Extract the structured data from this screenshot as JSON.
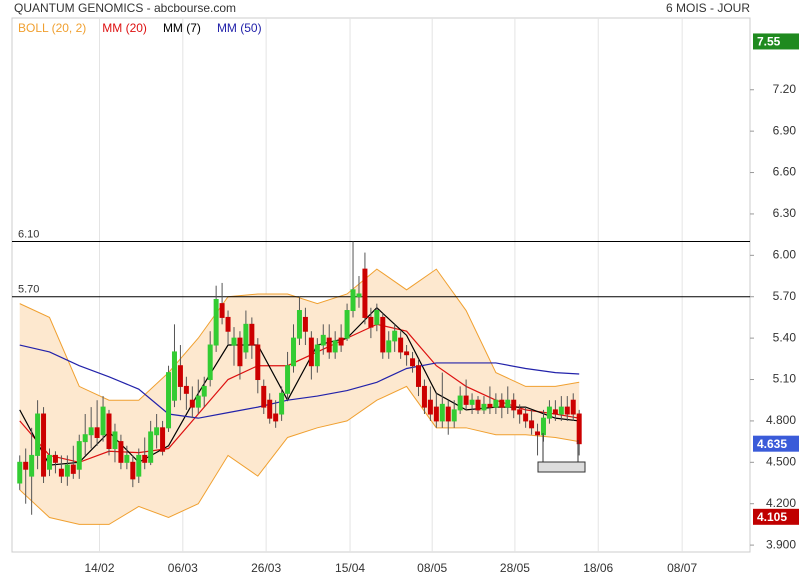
{
  "chart_data": {
    "type": "candlestick",
    "title": "QUANTUM GENOMICS - abcbourse.com",
    "subtitle": "6 MOIS - JOUR",
    "xlim": [
      -1.3,
      122.7
    ],
    "ylim": [
      3.85,
      7.72
    ],
    "xticks": [
      {
        "value": 13.4,
        "label": "14/02"
      },
      {
        "value": 27.4,
        "label": "06/03"
      },
      {
        "value": 41.4,
        "label": "26/03"
      },
      {
        "value": 55.5,
        "label": "15/04"
      },
      {
        "value": 69.3,
        "label": "08/05"
      },
      {
        "value": 83.2,
        "label": "28/05"
      },
      {
        "value": 97.2,
        "label": "18/06"
      },
      {
        "value": 111.3,
        "label": "08/07"
      }
    ],
    "yticks": [
      {
        "value": 3.9,
        "label": "3.900"
      },
      {
        "value": 4.2,
        "label": "4.200"
      },
      {
        "value": 4.5,
        "label": "4.500"
      },
      {
        "value": 4.8,
        "label": "4.800"
      },
      {
        "value": 5.1,
        "label": "5.10"
      },
      {
        "value": 5.4,
        "label": "5.40"
      },
      {
        "value": 5.7,
        "label": "5.70"
      },
      {
        "value": 6.0,
        "label": "6.00"
      },
      {
        "value": 6.3,
        "label": "6.30"
      },
      {
        "value": 6.6,
        "label": "6.60"
      },
      {
        "value": 6.9,
        "label": "6.90"
      },
      {
        "value": 7.2,
        "label": "7.20"
      }
    ],
    "grid": true,
    "up_color": "#33cc33",
    "down_color": "#cc0000",
    "x": [
      0,
      1,
      2,
      3,
      4,
      5,
      6,
      7,
      8,
      9,
      10,
      11,
      12,
      13,
      14,
      15,
      16,
      17,
      18,
      19,
      20,
      21,
      22,
      23,
      24,
      25,
      26,
      27,
      28,
      29,
      30,
      31,
      32,
      33,
      34,
      35,
      36,
      37,
      38,
      39,
      40,
      41,
      42,
      43,
      44,
      45,
      46,
      47,
      48,
      49,
      50,
      51,
      52,
      53,
      54,
      55,
      56,
      57,
      58,
      59,
      60,
      61,
      62,
      63,
      64,
      65,
      66,
      67,
      68,
      69,
      70,
      71,
      72,
      73,
      74,
      75,
      76,
      77,
      78,
      79,
      80,
      81,
      82,
      83,
      84,
      85,
      86,
      87,
      88,
      89,
      90,
      91,
      92,
      93,
      94
    ],
    "open": [
      4.35,
      4.5,
      4.4,
      4.55,
      4.85,
      4.45,
      4.55,
      4.45,
      4.4,
      4.48,
      4.45,
      4.65,
      4.7,
      4.75,
      4.7,
      4.85,
      4.6,
      4.65,
      4.5,
      4.5,
      4.4,
      4.55,
      4.5,
      4.7,
      4.75,
      4.75,
      4.95,
      5.2,
      5.05,
      4.95,
      4.9,
      4.98,
      5.1,
      5.35,
      5.65,
      5.55,
      5.35,
      5.4,
      5.3,
      5.5,
      5.35,
      5.05,
      4.95,
      4.85,
      4.85,
      5.0,
      5.2,
      5.4,
      5.55,
      5.4,
      5.2,
      5.35,
      5.4,
      5.3,
      5.4,
      5.4,
      5.6,
      5.7,
      5.9,
      5.55,
      5.5,
      5.55,
      5.3,
      5.38,
      5.4,
      5.3,
      5.25,
      5.2,
      5.05,
      4.95,
      4.9,
      4.8,
      4.9,
      4.8,
      4.88,
      4.98,
      4.92,
      4.95,
      4.88,
      4.92,
      4.9,
      4.95,
      4.9,
      4.95,
      4.88,
      4.85,
      4.8,
      4.72,
      4.7,
      4.82,
      4.88,
      4.85,
      4.9,
      4.95,
      4.85
    ],
    "high": [
      4.55,
      4.6,
      4.75,
      4.95,
      4.9,
      4.6,
      4.58,
      4.55,
      4.55,
      4.62,
      4.7,
      4.85,
      4.9,
      4.95,
      4.98,
      4.88,
      4.78,
      4.7,
      4.62,
      4.55,
      4.6,
      4.68,
      4.8,
      4.85,
      4.8,
      5.2,
      5.5,
      5.35,
      5.12,
      5.05,
      5.1,
      5.12,
      5.45,
      5.78,
      5.8,
      5.6,
      5.48,
      5.45,
      5.6,
      5.55,
      5.4,
      5.1,
      5.0,
      4.95,
      5.05,
      5.3,
      5.5,
      5.7,
      5.62,
      5.45,
      5.4,
      5.5,
      5.5,
      5.45,
      5.5,
      5.65,
      6.1,
      5.85,
      6.02,
      5.62,
      5.65,
      5.58,
      5.45,
      5.5,
      5.45,
      5.35,
      5.3,
      5.25,
      5.1,
      5.05,
      5.0,
      5.15,
      4.95,
      4.95,
      5.05,
      5.1,
      5.0,
      4.98,
      4.98,
      5.05,
      5.0,
      5.0,
      5.05,
      5.0,
      4.92,
      4.9,
      4.88,
      4.78,
      4.88,
      4.95,
      4.95,
      4.98,
      4.98,
      5.0,
      4.88
    ],
    "low": [
      4.3,
      4.2,
      4.12,
      4.45,
      4.35,
      4.4,
      4.42,
      4.35,
      4.33,
      4.38,
      4.38,
      4.55,
      4.6,
      4.62,
      4.65,
      4.55,
      4.5,
      4.45,
      4.45,
      4.32,
      4.35,
      4.45,
      4.48,
      4.6,
      4.55,
      4.72,
      4.9,
      4.95,
      4.88,
      4.82,
      4.85,
      4.9,
      5.05,
      5.3,
      5.5,
      5.35,
      5.2,
      5.1,
      5.25,
      5.25,
      5.0,
      4.85,
      4.78,
      4.75,
      4.8,
      4.95,
      5.15,
      5.35,
      5.35,
      5.1,
      5.15,
      5.28,
      5.25,
      5.25,
      5.3,
      5.38,
      5.55,
      5.62,
      5.5,
      5.4,
      5.45,
      5.25,
      5.25,
      5.3,
      5.25,
      5.2,
      5.15,
      4.98,
      4.85,
      4.8,
      4.75,
      4.75,
      4.7,
      4.75,
      4.85,
      4.88,
      4.85,
      4.85,
      4.85,
      4.85,
      4.85,
      4.82,
      4.85,
      4.82,
      4.78,
      4.75,
      4.7,
      4.55,
      4.65,
      4.78,
      4.8,
      4.8,
      4.8,
      4.8,
      4.55
    ],
    "close": [
      4.5,
      4.45,
      4.55,
      4.85,
      4.4,
      4.55,
      4.5,
      4.4,
      4.48,
      4.42,
      4.65,
      4.7,
      4.75,
      4.68,
      4.9,
      4.6,
      4.72,
      4.5,
      4.55,
      4.38,
      4.55,
      4.5,
      4.72,
      4.75,
      4.58,
      5.15,
      5.3,
      5.05,
      5.0,
      4.9,
      4.98,
      5.05,
      5.35,
      5.68,
      5.55,
      5.45,
      5.4,
      5.2,
      5.5,
      5.35,
      5.1,
      4.9,
      4.82,
      4.8,
      5.0,
      5.2,
      5.4,
      5.6,
      5.45,
      5.2,
      5.35,
      5.42,
      5.3,
      5.38,
      5.35,
      5.6,
      5.75,
      5.72,
      5.55,
      5.48,
      5.6,
      5.3,
      5.38,
      5.45,
      5.3,
      5.28,
      5.2,
      5.05,
      4.9,
      4.85,
      4.8,
      4.92,
      4.8,
      4.88,
      4.98,
      4.92,
      4.95,
      4.88,
      4.92,
      4.9,
      4.95,
      4.9,
      4.95,
      4.88,
      4.85,
      4.8,
      4.75,
      4.7,
      4.82,
      4.9,
      4.85,
      4.9,
      4.85,
      4.85,
      4.635
    ],
    "bollinger": {
      "name": "BOLL (20, 2)",
      "color": "#f0a030",
      "fill": "#fde8cf",
      "x": [
        0,
        5,
        10,
        15,
        20,
        25,
        30,
        35,
        40,
        45,
        50,
        55,
        60,
        65,
        70,
        75,
        80,
        85,
        90,
        94
      ],
      "upper": [
        5.65,
        5.55,
        5.05,
        4.95,
        4.95,
        5.15,
        5.4,
        5.7,
        5.72,
        5.72,
        5.65,
        5.72,
        5.9,
        5.75,
        5.9,
        5.6,
        5.15,
        5.05,
        5.05,
        5.08
      ],
      "lower": [
        4.3,
        4.1,
        4.05,
        4.05,
        4.18,
        4.1,
        4.2,
        4.55,
        4.4,
        4.68,
        4.75,
        4.8,
        4.95,
        5.05,
        4.75,
        4.75,
        4.7,
        4.7,
        4.68,
        4.65
      ]
    },
    "series": [
      {
        "name": "MM (20)",
        "color": "#dd1111",
        "x": [
          0,
          5,
          10,
          15,
          20,
          25,
          30,
          35,
          40,
          45,
          50,
          55,
          60,
          65,
          70,
          75,
          80,
          85,
          90,
          94
        ],
        "values": [
          4.8,
          4.55,
          4.5,
          4.58,
          4.57,
          4.6,
          4.85,
          5.1,
          5.2,
          5.2,
          5.3,
          5.4,
          5.5,
          5.45,
          5.2,
          5.05,
          4.95,
          4.88,
          4.85,
          4.82
        ]
      },
      {
        "name": "MM (7)",
        "color": "#000000",
        "x": [
          0,
          5,
          10,
          15,
          20,
          25,
          30,
          35,
          40,
          45,
          50,
          55,
          60,
          65,
          70,
          75,
          80,
          85,
          90,
          94
        ],
        "values": [
          4.88,
          4.48,
          4.5,
          4.72,
          4.5,
          4.62,
          5.0,
          5.35,
          5.35,
          4.95,
          5.35,
          5.4,
          5.62,
          5.42,
          5.0,
          4.88,
          4.9,
          4.9,
          4.82,
          4.8
        ]
      },
      {
        "name": "MM (50)",
        "color": "#2222aa",
        "x": [
          0,
          5,
          10,
          15,
          20,
          25,
          30,
          35,
          40,
          45,
          50,
          55,
          60,
          65,
          70,
          75,
          80,
          85,
          90,
          94
        ],
        "values": [
          5.35,
          5.3,
          5.2,
          5.12,
          5.03,
          4.85,
          4.82,
          4.86,
          4.9,
          4.95,
          4.98,
          5.02,
          5.08,
          5.18,
          5.22,
          5.22,
          5.22,
          5.18,
          5.15,
          5.14
        ]
      }
    ],
    "hlines": [
      {
        "value": 6.1,
        "label": "6.10"
      },
      {
        "value": 5.7,
        "label": "5.70"
      }
    ],
    "price_markers": [
      {
        "value": 7.55,
        "color": "#1f8a1f"
      },
      {
        "value": 4.635,
        "color": "#3a5bd9"
      },
      {
        "value": 4.105,
        "color": "#c00000"
      }
    ]
  }
}
